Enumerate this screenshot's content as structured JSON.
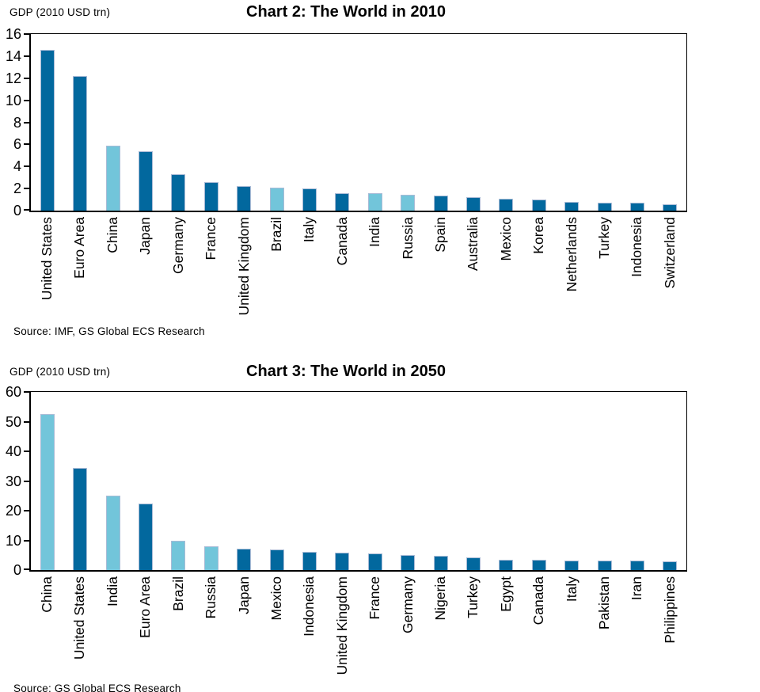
{
  "colors": {
    "bar_dark": "#02689E",
    "bar_light": "#72C5DA",
    "bar_border": "#A9BBD6",
    "axis": "#000000"
  },
  "chart_data": [
    {
      "type": "bar",
      "title": "Chart 2: The World in 2010",
      "unit_label": "GDP (2010 USD trn)",
      "source": "Source: IMF, GS Global ECS Research",
      "ylabel": "GDP (2010 USD trn)",
      "xlabel": "",
      "ylim": [
        0,
        16
      ],
      "y_ticks": [
        0,
        2,
        4,
        6,
        8,
        10,
        12,
        14,
        16
      ],
      "grid": false,
      "legend": null,
      "categories": [
        "United States",
        "Euro Area",
        "China",
        "Japan",
        "Germany",
        "France",
        "United Kingdom",
        "Brazil",
        "Italy",
        "Canada",
        "India",
        "Russia",
        "Spain",
        "Australia",
        "Mexico",
        "Korea",
        "Netherlands",
        "Turkey",
        "Indonesia",
        "Switzerland"
      ],
      "values": [
        14.6,
        12.2,
        5.9,
        5.4,
        3.3,
        2.6,
        2.2,
        2.1,
        2.0,
        1.6,
        1.55,
        1.45,
        1.4,
        1.25,
        1.05,
        1.0,
        0.8,
        0.75,
        0.7,
        0.55
      ],
      "light_bars": [
        2,
        7,
        10,
        11
      ]
    },
    {
      "type": "bar",
      "title": "Chart 3: The World in 2050",
      "unit_label": "GDP (2010 USD trn)",
      "source": "Source: GS Global ECS Research",
      "ylabel": "GDP (2010 USD trn)",
      "xlabel": "",
      "ylim": [
        0,
        60
      ],
      "y_ticks": [
        0,
        10,
        20,
        30,
        40,
        50,
        60
      ],
      "grid": false,
      "legend": null,
      "categories": [
        "China",
        "United States",
        "India",
        "Euro Area",
        "Brazil",
        "Russia",
        "Japan",
        "Mexico",
        "Indonesia",
        "United Kingdom",
        "France",
        "Germany",
        "Nigeria",
        "Turkey",
        "Egypt",
        "Canada",
        "Italy",
        "Pakistan",
        "Iran",
        "Philippines"
      ],
      "values": [
        52.6,
        34.5,
        25.0,
        22.4,
        9.8,
        8.0,
        7.2,
        6.9,
        6.2,
        5.8,
        5.5,
        5.0,
        4.7,
        4.4,
        3.6,
        3.5,
        3.3,
        3.2,
        3.1,
        3.0
      ],
      "light_bars": [
        0,
        2,
        4,
        5
      ]
    }
  ]
}
